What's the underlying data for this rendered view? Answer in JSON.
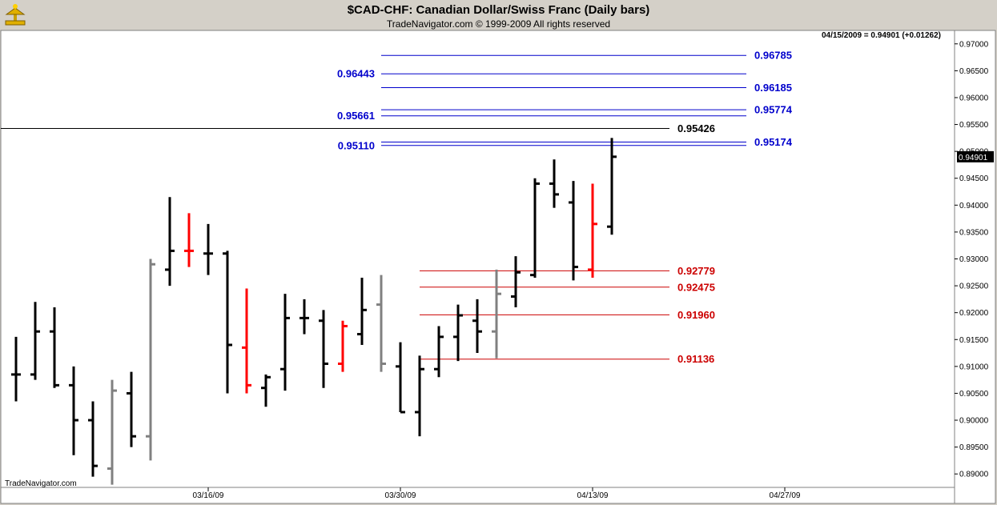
{
  "header": {
    "title": "$CAD-CHF:  Canadian Dollar/Swiss Franc  (Daily bars)",
    "subtitle": "TradeNavigator.com © 1999-2009 All rights reserved"
  },
  "status_readout": "04/15/2009 = 0.94901 (+0.01262)",
  "watermark": "TradeNavigator.com",
  "colors": {
    "background": "#d4d0c8",
    "plot_background": "#ffffff",
    "bar_black": "#000000",
    "bar_red": "#ff0000",
    "bar_gray": "#808080",
    "fib_blue": "#0000cc",
    "fib_red": "#cc0000",
    "level_black": "#000000"
  },
  "chart_data": {
    "type": "ohlc",
    "title": "$CAD-CHF:  Canadian Dollar/Swiss Franc  (Daily bars)",
    "ylim": [
      0.8875,
      0.9725
    ],
    "yticks": [
      "0.89000",
      "0.89500",
      "0.90000",
      "0.90500",
      "0.91000",
      "0.91500",
      "0.92000",
      "0.92500",
      "0.93000",
      "0.93500",
      "0.94000",
      "0.94500",
      "0.95000",
      "0.95500",
      "0.96000",
      "0.96500",
      "0.97000"
    ],
    "xticks": [
      {
        "label": "03/16/09",
        "bar": 10
      },
      {
        "label": "03/30/09",
        "bar": 20
      },
      {
        "label": "04/13/09",
        "bar": 30
      },
      {
        "label": "04/27/09",
        "bar": 40
      }
    ],
    "last_price_label": "0.94901",
    "bars": [
      {
        "o": 0.9085,
        "h": 0.9155,
        "l": 0.9035,
        "c": 0.9085,
        "color": "black"
      },
      {
        "o": 0.9085,
        "h": 0.922,
        "l": 0.9075,
        "c": 0.9165,
        "color": "black"
      },
      {
        "o": 0.9165,
        "h": 0.921,
        "l": 0.906,
        "c": 0.9065,
        "color": "black"
      },
      {
        "o": 0.9065,
        "h": 0.91,
        "l": 0.8935,
        "c": 0.9,
        "color": "black"
      },
      {
        "o": 0.9,
        "h": 0.9035,
        "l": 0.8895,
        "c": 0.8915,
        "color": "black"
      },
      {
        "o": 0.891,
        "h": 0.9075,
        "l": 0.888,
        "c": 0.9055,
        "color": "gray"
      },
      {
        "o": 0.905,
        "h": 0.909,
        "l": 0.895,
        "c": 0.897,
        "color": "black"
      },
      {
        "o": 0.897,
        "h": 0.93,
        "l": 0.8925,
        "c": 0.929,
        "color": "gray"
      },
      {
        "o": 0.928,
        "h": 0.9415,
        "l": 0.925,
        "c": 0.9315,
        "color": "black"
      },
      {
        "o": 0.9315,
        "h": 0.9385,
        "l": 0.9285,
        "c": 0.9315,
        "color": "red"
      },
      {
        "o": 0.931,
        "h": 0.9365,
        "l": 0.927,
        "c": 0.931,
        "color": "black"
      },
      {
        "o": 0.931,
        "h": 0.9315,
        "l": 0.905,
        "c": 0.914,
        "color": "black"
      },
      {
        "o": 0.9135,
        "h": 0.9245,
        "l": 0.905,
        "c": 0.9065,
        "color": "red"
      },
      {
        "o": 0.906,
        "h": 0.9085,
        "l": 0.9025,
        "c": 0.908,
        "color": "black"
      },
      {
        "o": 0.9095,
        "h": 0.9235,
        "l": 0.9055,
        "c": 0.919,
        "color": "black"
      },
      {
        "o": 0.919,
        "h": 0.9225,
        "l": 0.916,
        "c": 0.919,
        "color": "black"
      },
      {
        "o": 0.9185,
        "h": 0.9205,
        "l": 0.906,
        "c": 0.9105,
        "color": "black"
      },
      {
        "o": 0.9105,
        "h": 0.9185,
        "l": 0.909,
        "c": 0.9175,
        "color": "red"
      },
      {
        "o": 0.916,
        "h": 0.9265,
        "l": 0.914,
        "c": 0.9205,
        "color": "black"
      },
      {
        "o": 0.9215,
        "h": 0.927,
        "l": 0.909,
        "c": 0.9105,
        "color": "gray"
      },
      {
        "o": 0.91,
        "h": 0.9145,
        "l": 0.9015,
        "c": 0.9015,
        "color": "black"
      },
      {
        "o": 0.9015,
        "h": 0.912,
        "l": 0.897,
        "c": 0.9095,
        "color": "black"
      },
      {
        "o": 0.9095,
        "h": 0.9175,
        "l": 0.908,
        "c": 0.9155,
        "color": "black"
      },
      {
        "o": 0.9155,
        "h": 0.9215,
        "l": 0.911,
        "c": 0.9195,
        "color": "black"
      },
      {
        "o": 0.9185,
        "h": 0.9225,
        "l": 0.9125,
        "c": 0.9165,
        "color": "black"
      },
      {
        "o": 0.9165,
        "h": 0.928,
        "l": 0.9115,
        "c": 0.9235,
        "color": "gray"
      },
      {
        "o": 0.923,
        "h": 0.9305,
        "l": 0.921,
        "c": 0.9275,
        "color": "black"
      },
      {
        "o": 0.927,
        "h": 0.945,
        "l": 0.9265,
        "c": 0.944,
        "color": "black"
      },
      {
        "o": 0.944,
        "h": 0.9485,
        "l": 0.9395,
        "c": 0.942,
        "color": "black"
      },
      {
        "o": 0.9405,
        "h": 0.9445,
        "l": 0.926,
        "c": 0.9285,
        "color": "black"
      },
      {
        "o": 0.928,
        "h": 0.944,
        "l": 0.9265,
        "c": 0.9365,
        "color": "red"
      },
      {
        "o": 0.936,
        "h": 0.9525,
        "l": 0.9345,
        "c": 0.949,
        "color": "black"
      }
    ],
    "levels": [
      {
        "value": 0.96785,
        "label": "0.96785",
        "color": "blue",
        "from": 19,
        "to": 38,
        "label_side": "right"
      },
      {
        "value": 0.96443,
        "label": "0.96443",
        "color": "blue",
        "from": 19,
        "to": 38,
        "label_side": "left"
      },
      {
        "value": 0.96185,
        "label": "0.96185",
        "color": "blue",
        "from": 19,
        "to": 38,
        "label_side": "right"
      },
      {
        "value": 0.95774,
        "label": "0.95774",
        "color": "blue",
        "from": 19,
        "to": 38,
        "label_side": "right"
      },
      {
        "value": 0.95661,
        "label": "0.95661",
        "color": "blue",
        "from": 19,
        "to": 38,
        "label_side": "left"
      },
      {
        "value": 0.95426,
        "label": "0.95426",
        "color": "black",
        "from": -1,
        "to": 34,
        "label_side": "right"
      },
      {
        "value": 0.9511,
        "label": "0.95110",
        "color": "blue",
        "from": 19,
        "to": 38,
        "label_side": "left"
      },
      {
        "value": 0.95174,
        "label": "0.95174",
        "color": "blue",
        "from": 19,
        "to": 38,
        "label_side": "right"
      },
      {
        "value": 0.92779,
        "label": "0.92779",
        "color": "red",
        "from": 21,
        "to": 34,
        "label_side": "right"
      },
      {
        "value": 0.92475,
        "label": "0.92475",
        "color": "red",
        "from": 21,
        "to": 34,
        "label_side": "right"
      },
      {
        "value": 0.9196,
        "label": "0.91960",
        "color": "red",
        "from": 21,
        "to": 34,
        "label_side": "right"
      },
      {
        "value": 0.91136,
        "label": "0.91136",
        "color": "red",
        "from": 21,
        "to": 34,
        "label_side": "right"
      }
    ]
  }
}
